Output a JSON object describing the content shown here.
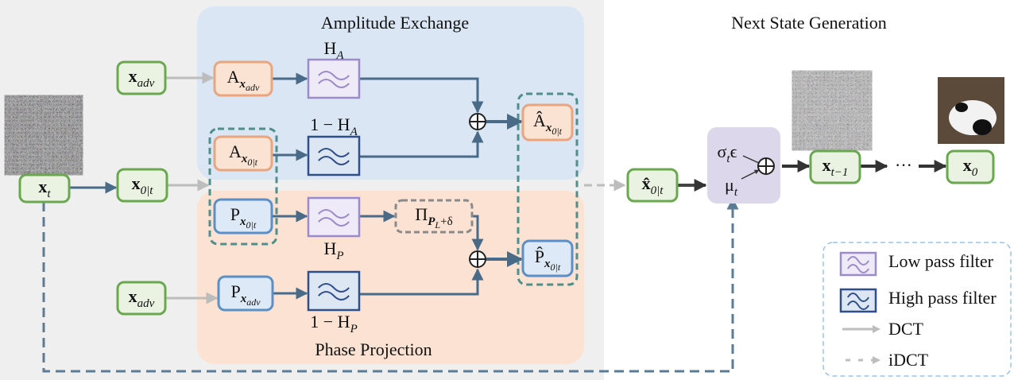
{
  "regions": {
    "amplitude": "Amplitude Exchange",
    "phase": "Phase Projection",
    "next": "Next State Generation"
  },
  "nodes": {
    "x_t": {
      "base": "x",
      "sub": "t"
    },
    "x_adv_top": {
      "base": "x",
      "sub": "adv"
    },
    "x_0t": {
      "base": "x",
      "sub": "0|t"
    },
    "x_adv_bottom": {
      "base": "x",
      "sub": "adv"
    },
    "A_adv": {
      "base": "A",
      "sub": "x",
      "subsub": "adv"
    },
    "A_0t": {
      "base": "A",
      "sub": "x",
      "subsub": "0|t"
    },
    "P_0t": {
      "base": "P",
      "sub": "x",
      "subsub": "0|t"
    },
    "P_adv": {
      "base": "P",
      "sub": "x",
      "subsub": "adv"
    },
    "proj": {
      "base": "Π",
      "sub": "P",
      "subsub": "L",
      "tail": "+δ"
    },
    "A_hat": {
      "base": "Â",
      "sub": "x",
      "subsub": "0|t"
    },
    "P_hat": {
      "base": "P̂",
      "sub": "x",
      "subsub": "0|t"
    },
    "x_hat": {
      "base": "x̂",
      "sub": "0|t"
    },
    "x_tm1": {
      "base": "x",
      "sub": "t−1"
    },
    "x_0": {
      "base": "x",
      "sub": "0"
    },
    "sigma": {
      "base": "σ",
      "sub": "t",
      "tail": "ϵ"
    },
    "mu": {
      "base": "μ",
      "sub": "t"
    },
    "ellipsis": "···"
  },
  "filters": {
    "H_A": {
      "base": "H",
      "sub": "A"
    },
    "one_minus_H_A": {
      "pre": "1 − ",
      "base": "H",
      "sub": "A"
    },
    "H_P": {
      "base": "H",
      "sub": "P"
    },
    "one_minus_H_P": {
      "pre": "1 − ",
      "base": "H",
      "sub": "P"
    }
  },
  "legend": [
    "Low pass filter",
    "High pass filter",
    "DCT",
    "iDCT"
  ]
}
